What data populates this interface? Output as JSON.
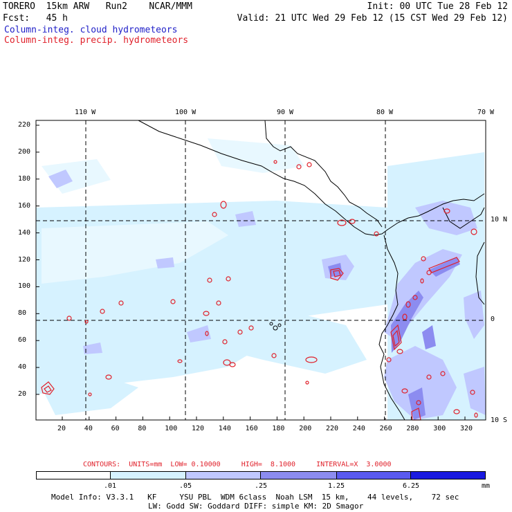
{
  "header": {
    "model": "TORERO  15km ARW   Run2    NCAR/MMM",
    "init": "Init: 00 UTC Tue 28 Feb 12",
    "fcst": "Fcst:   45 h",
    "valid": "Valid: 21 UTC Wed 29 Feb 12 (15 CST Wed 29 Feb 12)",
    "field1": "Column-integ. cloud hydrometeors",
    "field2": "Column-integ. precip. hydrometeors"
  },
  "colors": {
    "field1": "#2020c8",
    "field2": "#e0202a",
    "shade_levels": [
      "#ffffff",
      "#d6f2ff",
      "#c0c8ff",
      "#8c8cf0",
      "#5a5af0",
      "#1a1ae0"
    ],
    "contour": "#e0202a",
    "coast": "#000000"
  },
  "map": {
    "top_lon_labels": [
      "110 W",
      "100 W",
      "90 W",
      "80 W",
      "70 W"
    ],
    "right_lat_labels": [
      "10 N",
      "0",
      "10 S"
    ],
    "left_y_ticks": [
      "220",
      "200",
      "180",
      "160",
      "140",
      "120",
      "100",
      "80",
      "60",
      "40",
      "20"
    ],
    "bottom_x_ticks": [
      "20",
      "40",
      "60",
      "80",
      "100",
      "120",
      "140",
      "160",
      "180",
      "200",
      "220",
      "240",
      "260",
      "280",
      "300",
      "320"
    ]
  },
  "legend": {
    "title": "CONTOURS:  UNITS=mm  LOW= 0.10000     HIGH=  8.1000     INTERVAL=X  3.0000",
    "levels": [
      ".01",
      ".05",
      ".25",
      "1.25",
      "6.25"
    ],
    "units": "mm"
  },
  "footer": {
    "line1": "Model Info: V3.3.1   KF     YSU PBL  WDM 6class  Noah LSM  15 km,    44 levels,    72 sec",
    "line2": "LW: Godd SW: Goddard DIFF: simple KM: 2D Smagor"
  }
}
